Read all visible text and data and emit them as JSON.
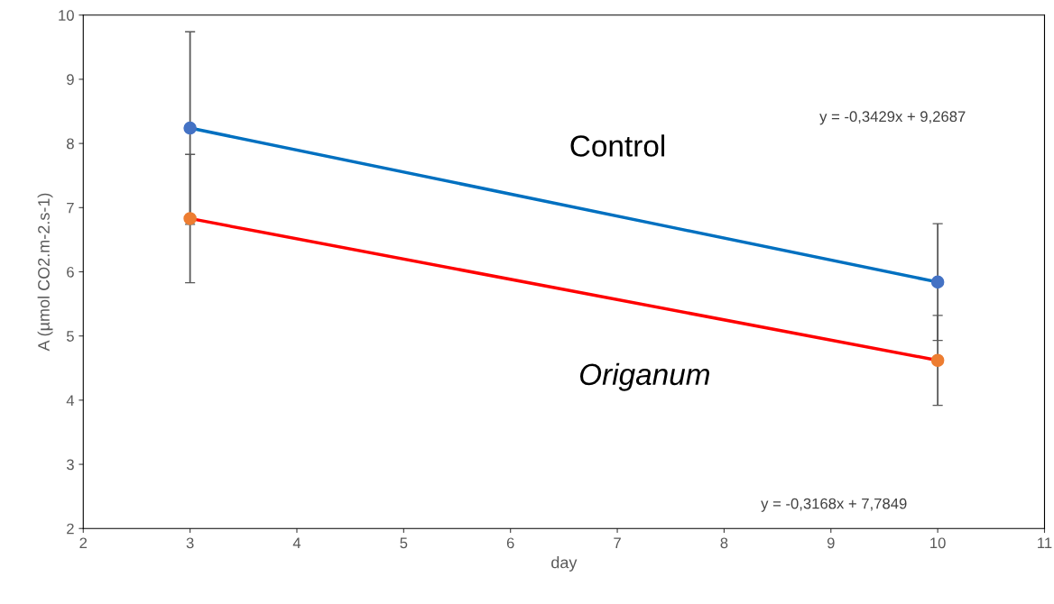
{
  "chart_data": {
    "type": "scatter",
    "xlabel": "day",
    "ylabel": "A (µmol CO2.m-2.s-1)",
    "x": [
      3,
      10
    ],
    "series": [
      {
        "type": "line",
        "color": "#0070c0",
        "values": [
          8.24,
          5.84
        ]
      },
      {
        "type": "line",
        "color": "#ff0000",
        "values": [
          6.83,
          4.62
        ]
      },
      {
        "color": "#4472c4",
        "values": [
          8.24,
          5.84
        ],
        "errors": [
          1.5,
          0.91
        ],
        "marker": "circle"
      },
      {
        "color": "#ed7d31",
        "values": [
          6.83,
          4.62
        ],
        "errors": [
          1.0,
          0.7
        ],
        "marker": "circle"
      }
    ],
    "annotations": [
      "Control",
      "Origanum",
      "y = -0,3429x + 9,2687",
      "y = -0,3168x + 7,7849"
    ],
    "xlim": [
      2,
      11
    ],
    "xticks": [
      2,
      3,
      4,
      5,
      6,
      7,
      8,
      9,
      10,
      11
    ],
    "ylim": [
      2,
      10
    ],
    "yticks": [
      2,
      3,
      4,
      5,
      6,
      7,
      8,
      9,
      10
    ]
  }
}
